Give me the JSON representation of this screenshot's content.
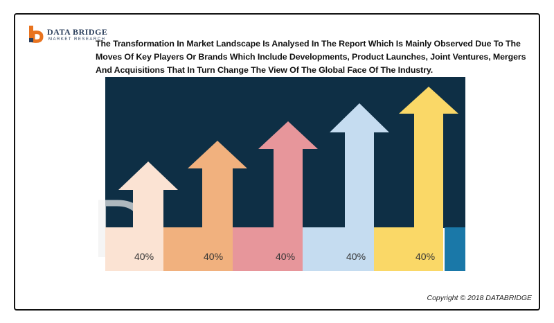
{
  "logo": {
    "brand": "DATA BRIDGE",
    "tagline": "MARKET RESEARCH"
  },
  "headline": "The Transformation In Market Landscape Is Analysed In The Report Which Is Mainly Observed Due To The Moves Of Key Players Or Brands Which Include Developments, Product Launches, Joint Ventures, Mergers And Acquisitions That In Turn Change The View Of The Global Face Of The Industry.",
  "arrows": [
    {
      "label": "40%",
      "color": "#fbe3d3"
    },
    {
      "label": "40%",
      "color": "#f1b17e"
    },
    {
      "label": "40%",
      "color": "#e7969b"
    },
    {
      "label": "40%",
      "color": "#c5dcf0"
    },
    {
      "label": "40%",
      "color": "#fad867"
    }
  ],
  "colors": {
    "chart_background": "#0e2f45",
    "accent_band": "#1a78a8",
    "logo_orange": "#e8731f",
    "logo_navy": "#2b3f5c"
  },
  "copyright": "Copyright © 2018 DATABRIDGE"
}
